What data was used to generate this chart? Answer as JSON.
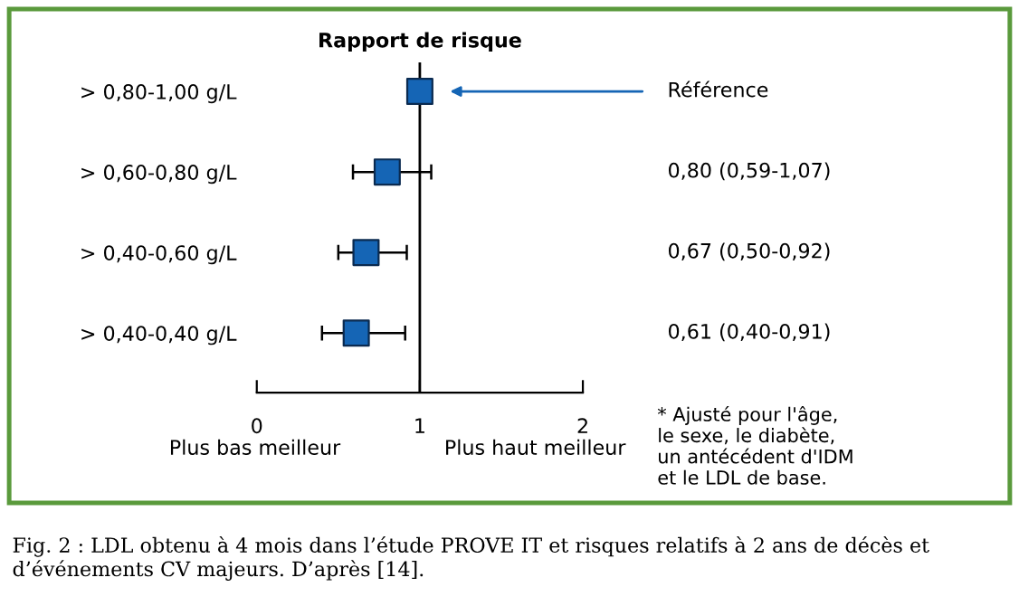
{
  "chart_data": {
    "type": "scatter",
    "orientation": "horizontal",
    "title": "Rapport de risque",
    "categories": [
      "> 0,80-1,00 g/L",
      "> 0,60-0,80 g/L",
      "> 0,40-0,60 g/L",
      "> 0,40-0,40 g/L"
    ],
    "values": [
      1.0,
      0.8,
      0.67,
      0.61
    ],
    "errors": [
      null,
      [
        0.59,
        1.07
      ],
      [
        0.5,
        0.92
      ],
      [
        0.4,
        0.91
      ]
    ],
    "value_labels": [
      null,
      "0,80 (0,59-1,07)",
      "0,67 (0,50-0,92)",
      "0,61 (0,40-0,91)"
    ],
    "color": "#1565b5",
    "marker": "square",
    "xlim": [
      0,
      2
    ],
    "xticks": [
      0,
      1,
      2
    ],
    "ref_lines": [
      {
        "axis": "x",
        "value": 1,
        "color": "#000000",
        "line_style": "solid"
      }
    ],
    "grid": false,
    "legend": false,
    "annotations": [
      "Référence",
      "Plus bas meilleur",
      "Plus haut meilleur",
      "* Ajusté pour l'âge,\nle sexe, le diabète,\nun antécédent d'IDM\net le LDL de base.",
      "Fig. 2 : LDL obtenu à 4 mois dans l’étude PROVE IT et risques relatifs à 2 ans de décès et d’événements CV majeurs. D’après [14]."
    ]
  }
}
